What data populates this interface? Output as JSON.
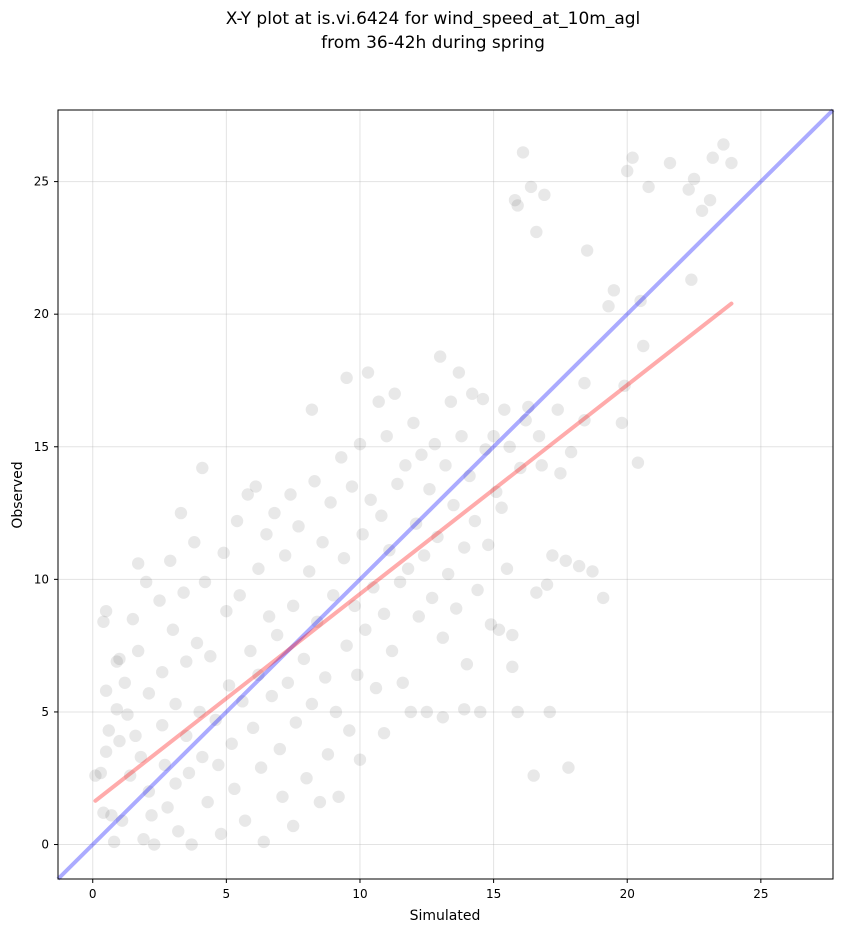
{
  "chart_data": {
    "type": "scatter",
    "title_lines": [
      "X-Y plot at is.vi.6424 for wind_speed_at_10m_agl",
      "from 36-42h during spring"
    ],
    "xlabel": "Simulated",
    "ylabel": "Observed",
    "xlim": [
      -1.3,
      27.7
    ],
    "ylim": [
      -1.3,
      27.7
    ],
    "xticks": [
      0,
      5,
      10,
      15,
      20,
      25
    ],
    "yticks": [
      0,
      5,
      10,
      15,
      20,
      25
    ],
    "grid": true,
    "point_color": "#000000",
    "point_opacity": 0.09,
    "identity_line": {
      "x": [
        -1.3,
        27.7
      ],
      "y": [
        -1.3,
        27.7
      ],
      "color": "#0000ff",
      "opacity": 0.33
    },
    "fit_line": {
      "x": [
        0.1,
        23.9
      ],
      "y": [
        1.65,
        20.4
      ],
      "color": "#ff0000",
      "opacity": 0.33
    },
    "points": [
      [
        0.1,
        2.6
      ],
      [
        0.3,
        2.7
      ],
      [
        0.4,
        1.2
      ],
      [
        0.5,
        8.8
      ],
      [
        0.4,
        8.4
      ],
      [
        0.5,
        5.8
      ],
      [
        0.6,
        4.3
      ],
      [
        0.5,
        3.5
      ],
      [
        0.7,
        1.1
      ],
      [
        0.8,
        0.1
      ],
      [
        0.9,
        6.9
      ],
      [
        0.9,
        5.1
      ],
      [
        1.0,
        3.9
      ],
      [
        1.1,
        0.9
      ],
      [
        1.0,
        7.0
      ],
      [
        1.2,
        6.1
      ],
      [
        1.3,
        4.9
      ],
      [
        1.4,
        2.6
      ],
      [
        1.5,
        8.5
      ],
      [
        1.6,
        4.1
      ],
      [
        1.7,
        10.6
      ],
      [
        1.7,
        7.3
      ],
      [
        1.8,
        3.3
      ],
      [
        1.9,
        0.2
      ],
      [
        2.0,
        9.9
      ],
      [
        2.1,
        5.7
      ],
      [
        2.1,
        2.0
      ],
      [
        2.2,
        1.1
      ],
      [
        2.3,
        0.0
      ],
      [
        2.5,
        9.2
      ],
      [
        2.6,
        6.5
      ],
      [
        2.6,
        4.5
      ],
      [
        2.7,
        3.0
      ],
      [
        2.8,
        1.4
      ],
      [
        2.9,
        10.7
      ],
      [
        3.0,
        8.1
      ],
      [
        3.1,
        5.3
      ],
      [
        3.1,
        2.3
      ],
      [
        3.2,
        0.5
      ],
      [
        3.3,
        12.5
      ],
      [
        3.4,
        9.5
      ],
      [
        3.5,
        6.9
      ],
      [
        3.5,
        4.1
      ],
      [
        3.6,
        2.7
      ],
      [
        3.7,
        0.0
      ],
      [
        3.8,
        11.4
      ],
      [
        3.9,
        7.6
      ],
      [
        4.0,
        5.0
      ],
      [
        4.1,
        3.3
      ],
      [
        4.1,
        14.2
      ],
      [
        4.2,
        9.9
      ],
      [
        4.3,
        1.6
      ],
      [
        4.4,
        7.1
      ],
      [
        4.6,
        4.7
      ],
      [
        4.7,
        3.0
      ],
      [
        4.8,
        0.4
      ],
      [
        4.9,
        11.0
      ],
      [
        5.0,
        8.8
      ],
      [
        5.1,
        6.0
      ],
      [
        5.2,
        3.8
      ],
      [
        5.3,
        2.1
      ],
      [
        5.4,
        12.2
      ],
      [
        5.5,
        9.4
      ],
      [
        5.6,
        5.4
      ],
      [
        5.7,
        0.9
      ],
      [
        5.8,
        13.2
      ],
      [
        5.9,
        7.3
      ],
      [
        6.0,
        4.4
      ],
      [
        6.1,
        13.5
      ],
      [
        6.2,
        10.4
      ],
      [
        6.2,
        6.4
      ],
      [
        6.3,
        2.9
      ],
      [
        6.4,
        0.1
      ],
      [
        6.5,
        11.7
      ],
      [
        6.6,
        8.6
      ],
      [
        6.7,
        5.6
      ],
      [
        6.8,
        12.5
      ],
      [
        6.9,
        7.9
      ],
      [
        7.0,
        3.6
      ],
      [
        7.1,
        1.8
      ],
      [
        7.2,
        10.9
      ],
      [
        7.3,
        6.1
      ],
      [
        7.4,
        13.2
      ],
      [
        7.5,
        9.0
      ],
      [
        7.5,
        0.7
      ],
      [
        7.6,
        4.6
      ],
      [
        7.7,
        12.0
      ],
      [
        7.9,
        7.0
      ],
      [
        8.0,
        2.5
      ],
      [
        8.1,
        10.3
      ],
      [
        8.2,
        16.4
      ],
      [
        8.2,
        5.3
      ],
      [
        8.3,
        13.7
      ],
      [
        8.4,
        8.4
      ],
      [
        8.5,
        1.6
      ],
      [
        8.6,
        11.4
      ],
      [
        8.7,
        6.3
      ],
      [
        8.8,
        3.4
      ],
      [
        8.9,
        12.9
      ],
      [
        9.0,
        9.4
      ],
      [
        9.1,
        5.0
      ],
      [
        9.2,
        1.8
      ],
      [
        9.3,
        14.6
      ],
      [
        9.4,
        10.8
      ],
      [
        9.5,
        7.5
      ],
      [
        9.5,
        17.6
      ],
      [
        9.6,
        4.3
      ],
      [
        9.7,
        13.5
      ],
      [
        9.8,
        9.0
      ],
      [
        9.9,
        6.4
      ],
      [
        10.0,
        15.1
      ],
      [
        10.0,
        3.2
      ],
      [
        10.1,
        11.7
      ],
      [
        10.2,
        8.1
      ],
      [
        10.3,
        17.8
      ],
      [
        10.4,
        13.0
      ],
      [
        10.5,
        9.7
      ],
      [
        10.6,
        5.9
      ],
      [
        10.7,
        16.7
      ],
      [
        10.8,
        12.4
      ],
      [
        10.9,
        8.7
      ],
      [
        10.9,
        4.2
      ],
      [
        11.0,
        15.4
      ],
      [
        11.1,
        11.1
      ],
      [
        11.2,
        7.3
      ],
      [
        11.3,
        17.0
      ],
      [
        11.4,
        13.6
      ],
      [
        11.5,
        9.9
      ],
      [
        11.6,
        6.1
      ],
      [
        11.7,
        14.3
      ],
      [
        11.8,
        10.4
      ],
      [
        11.9,
        5.0
      ],
      [
        12.0,
        15.9
      ],
      [
        12.1,
        12.1
      ],
      [
        12.2,
        8.6
      ],
      [
        12.3,
        14.7
      ],
      [
        12.4,
        10.9
      ],
      [
        12.5,
        5.0
      ],
      [
        12.6,
        13.4
      ],
      [
        12.7,
        9.3
      ],
      [
        12.8,
        15.1
      ],
      [
        12.9,
        11.6
      ],
      [
        13.0,
        18.4
      ],
      [
        13.1,
        7.8
      ],
      [
        13.1,
        4.8
      ],
      [
        13.2,
        14.3
      ],
      [
        13.3,
        10.2
      ],
      [
        13.4,
        16.7
      ],
      [
        13.5,
        12.8
      ],
      [
        13.6,
        8.9
      ],
      [
        13.7,
        17.8
      ],
      [
        13.8,
        15.4
      ],
      [
        13.9,
        11.2
      ],
      [
        13.9,
        5.1
      ],
      [
        14.0,
        6.8
      ],
      [
        14.1,
        13.9
      ],
      [
        14.2,
        17.0
      ],
      [
        14.3,
        12.2
      ],
      [
        14.4,
        9.6
      ],
      [
        14.5,
        5.0
      ],
      [
        14.6,
        16.8
      ],
      [
        14.7,
        14.9
      ],
      [
        14.8,
        11.3
      ],
      [
        14.9,
        8.3
      ],
      [
        15.0,
        15.4
      ],
      [
        15.1,
        13.3
      ],
      [
        15.2,
        8.1
      ],
      [
        15.3,
        12.7
      ],
      [
        15.4,
        16.4
      ],
      [
        15.5,
        10.4
      ],
      [
        15.6,
        15.0
      ],
      [
        15.7,
        7.9
      ],
      [
        15.7,
        6.7
      ],
      [
        15.8,
        24.3
      ],
      [
        15.9,
        24.1
      ],
      [
        15.9,
        5.0
      ],
      [
        16.0,
        14.2
      ],
      [
        16.1,
        26.1
      ],
      [
        16.2,
        16.0
      ],
      [
        16.3,
        16.5
      ],
      [
        16.4,
        24.8
      ],
      [
        16.5,
        2.6
      ],
      [
        16.6,
        23.1
      ],
      [
        16.6,
        9.5
      ],
      [
        16.7,
        15.4
      ],
      [
        16.8,
        14.3
      ],
      [
        16.9,
        24.5
      ],
      [
        17.0,
        9.8
      ],
      [
        17.1,
        5.0
      ],
      [
        17.2,
        10.9
      ],
      [
        17.4,
        16.4
      ],
      [
        17.5,
        14.0
      ],
      [
        17.7,
        10.7
      ],
      [
        17.8,
        2.9
      ],
      [
        17.9,
        14.8
      ],
      [
        18.2,
        10.5
      ],
      [
        18.4,
        16.0
      ],
      [
        18.4,
        17.4
      ],
      [
        18.5,
        22.4
      ],
      [
        18.7,
        10.3
      ],
      [
        19.1,
        9.3
      ],
      [
        19.3,
        20.3
      ],
      [
        19.5,
        20.9
      ],
      [
        19.8,
        15.9
      ],
      [
        19.9,
        17.3
      ],
      [
        20.0,
        25.4
      ],
      [
        20.2,
        25.9
      ],
      [
        20.4,
        14.4
      ],
      [
        20.5,
        20.5
      ],
      [
        20.6,
        18.8
      ],
      [
        20.8,
        24.8
      ],
      [
        21.6,
        25.7
      ],
      [
        22.3,
        24.7
      ],
      [
        22.4,
        21.3
      ],
      [
        22.5,
        25.1
      ],
      [
        22.8,
        23.9
      ],
      [
        23.1,
        24.3
      ],
      [
        23.2,
        25.9
      ],
      [
        23.6,
        26.4
      ],
      [
        23.9,
        25.7
      ]
    ]
  }
}
